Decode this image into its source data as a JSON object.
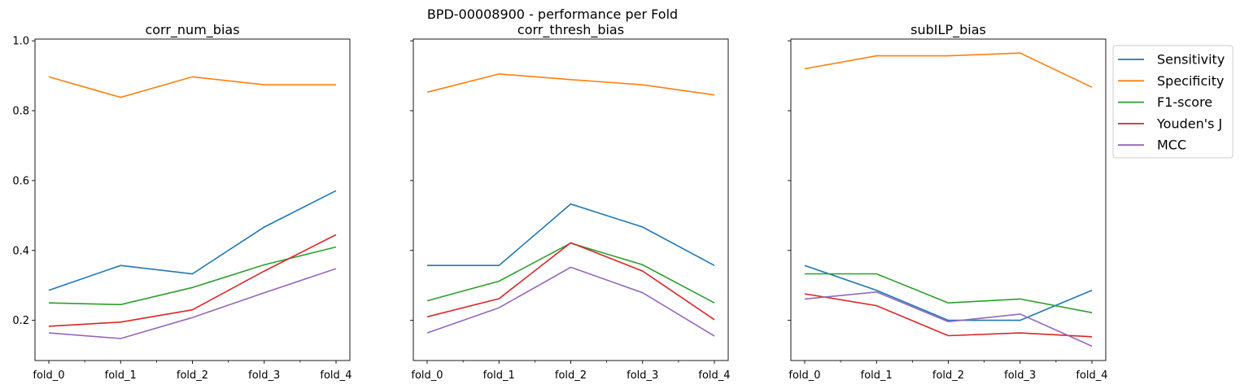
{
  "suptitle": "BPD-00008900 - performance per Fold",
  "chart_data": [
    {
      "type": "line",
      "title": "corr_num_bias",
      "categories": [
        "fold_0",
        "fold_1",
        "fold_2",
        "fold_3",
        "fold_4"
      ],
      "ylim": [
        0.085,
        1.005
      ],
      "yticks": [
        "0.2",
        "0.4",
        "0.6",
        "0.8",
        "1.0"
      ],
      "series": [
        {
          "name": "Sensitivity",
          "color": "#1f77b4",
          "values": [
            0.286,
            0.357,
            0.333,
            0.467,
            0.571
          ]
        },
        {
          "name": "Specificity",
          "color": "#ff7f0e",
          "values": [
            0.897,
            0.838,
            0.897,
            0.874,
            0.874
          ]
        },
        {
          "name": "F1-score",
          "color": "#2ca02c",
          "values": [
            0.25,
            0.245,
            0.294,
            0.359,
            0.41
          ]
        },
        {
          "name": "Youden's J",
          "color": "#d62728",
          "values": [
            0.183,
            0.195,
            0.23,
            0.341,
            0.445
          ]
        },
        {
          "name": "MCC",
          "color": "#9467bd",
          "values": [
            0.164,
            0.148,
            0.208,
            0.279,
            0.348
          ]
        }
      ]
    },
    {
      "type": "line",
      "title": "corr_thresh_bias",
      "categories": [
        "fold_0",
        "fold_1",
        "fold_2",
        "fold_3",
        "fold_4"
      ],
      "ylim": [
        0.085,
        1.005
      ],
      "yticks": [
        "0.2",
        "0.4",
        "0.6",
        "0.8",
        "1.0"
      ],
      "series": [
        {
          "name": "Sensitivity",
          "color": "#1f77b4",
          "values": [
            0.357,
            0.357,
            0.533,
            0.467,
            0.357
          ]
        },
        {
          "name": "Specificity",
          "color": "#ff7f0e",
          "values": [
            0.853,
            0.905,
            0.889,
            0.874,
            0.845
          ]
        },
        {
          "name": "F1-score",
          "color": "#2ca02c",
          "values": [
            0.256,
            0.312,
            0.421,
            0.359,
            0.25
          ]
        },
        {
          "name": "Youden's J",
          "color": "#d62728",
          "values": [
            0.21,
            0.262,
            0.422,
            0.341,
            0.202
          ]
        },
        {
          "name": "MCC",
          "color": "#9467bd",
          "values": [
            0.164,
            0.236,
            0.352,
            0.279,
            0.155
          ]
        }
      ]
    },
    {
      "type": "line",
      "title": "subILP_bias",
      "categories": [
        "fold_0",
        "fold_1",
        "fold_2",
        "fold_3",
        "fold_4"
      ],
      "ylim": [
        0.085,
        1.005
      ],
      "yticks": [
        "0.2",
        "0.4",
        "0.6",
        "0.8",
        "1.0"
      ],
      "series": [
        {
          "name": "Sensitivity",
          "color": "#1f77b4",
          "values": [
            0.357,
            0.286,
            0.2,
            0.2,
            0.286
          ]
        },
        {
          "name": "Specificity",
          "color": "#ff7f0e",
          "values": [
            0.92,
            0.957,
            0.957,
            0.965,
            0.867
          ]
        },
        {
          "name": "F1-score",
          "color": "#2ca02c",
          "values": [
            0.333,
            0.333,
            0.25,
            0.261,
            0.222
          ]
        },
        {
          "name": "Youden's J",
          "color": "#d62728",
          "values": [
            0.276,
            0.242,
            0.156,
            0.164,
            0.153
          ]
        },
        {
          "name": "MCC",
          "color": "#9467bd",
          "values": [
            0.261,
            0.281,
            0.196,
            0.218,
            0.126
          ]
        }
      ]
    }
  ],
  "legend": {
    "placement": "outside-right of last panel",
    "entries": [
      "Sensitivity",
      "Specificity",
      "F1-score",
      "Youden's J",
      "MCC"
    ]
  }
}
